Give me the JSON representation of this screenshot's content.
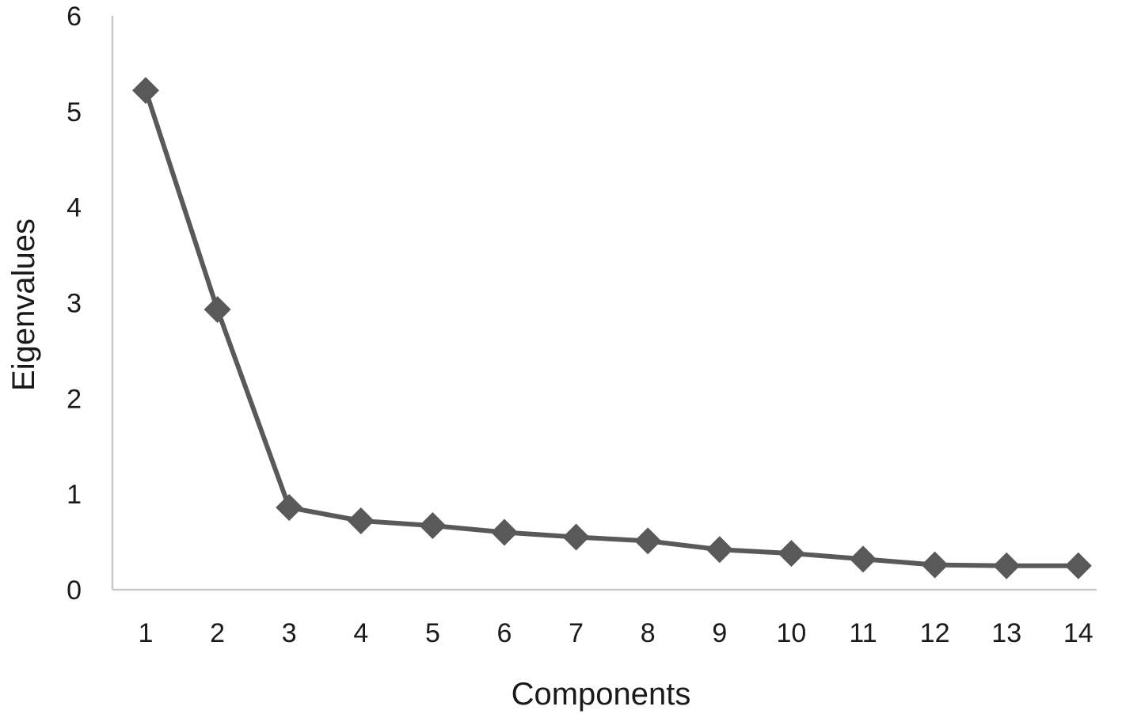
{
  "chart_data": {
    "type": "line",
    "title": "",
    "xlabel": "Components",
    "ylabel": "Eigenvalues",
    "categories": [
      "1",
      "2",
      "3",
      "4",
      "5",
      "6",
      "7",
      "8",
      "9",
      "10",
      "11",
      "12",
      "13",
      "14"
    ],
    "series": [
      {
        "values": [
          5.22,
          2.93,
          0.86,
          0.72,
          0.67,
          0.6,
          0.55,
          0.51,
          0.42,
          0.38,
          0.32,
          0.26,
          0.25,
          0.25
        ]
      }
    ],
    "ylim": [
      0,
      6
    ],
    "yticks": [
      "0",
      "1",
      "2",
      "3",
      "4",
      "5",
      "6"
    ],
    "grid": false,
    "legend": "none",
    "marker": "diamond",
    "colors": {
      "series": "#595959",
      "axis": "#c8c8c8",
      "text": "#1a1a1a"
    }
  }
}
